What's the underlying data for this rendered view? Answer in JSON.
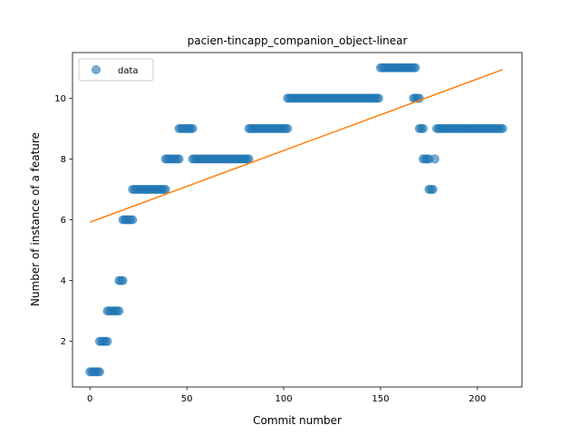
{
  "chart_data": {
    "type": "scatter",
    "title": "pacien-tincapp_companion_object-linear",
    "xlabel": "Commit number",
    "ylabel": "Number of instance of a feature",
    "xlim": [
      -9,
      223
    ],
    "ylim": [
      0.5,
      11.5
    ],
    "xticks": [
      0,
      50,
      100,
      150,
      200
    ],
    "yticks": [
      2,
      4,
      6,
      8,
      10
    ],
    "legend": {
      "position": "top-left",
      "entries": [
        "data"
      ]
    },
    "colors": {
      "points": "#1f77b4",
      "fit": "#ff7f0e"
    },
    "series": [
      {
        "name": "data",
        "kind": "scatter",
        "segments": [
          {
            "x_start": 0,
            "x_end": 5,
            "y": 1
          },
          {
            "x_start": 5,
            "x_end": 9,
            "y": 2
          },
          {
            "x_start": 9,
            "x_end": 15,
            "y": 3
          },
          {
            "x_start": 15,
            "x_end": 17,
            "y": 4
          },
          {
            "x_start": 17,
            "x_end": 22,
            "y": 6
          },
          {
            "x_start": 22,
            "x_end": 39,
            "y": 7
          },
          {
            "x_start": 39,
            "x_end": 46,
            "y": 8
          },
          {
            "x_start": 46,
            "x_end": 53,
            "y": 9
          },
          {
            "x_start": 53,
            "x_end": 82,
            "y": 8
          },
          {
            "x_start": 82,
            "x_end": 102,
            "y": 9
          },
          {
            "x_start": 102,
            "x_end": 149,
            "y": 10
          },
          {
            "x_start": 150,
            "x_end": 168,
            "y": 11
          },
          {
            "x_start": 167,
            "x_end": 170,
            "y": 10
          },
          {
            "x_start": 170,
            "x_end": 172,
            "y": 9
          },
          {
            "x_start": 172,
            "x_end": 175,
            "y": 8
          },
          {
            "x_start": 175,
            "x_end": 177,
            "y": 7
          },
          {
            "x_start": 178,
            "x_end": 178,
            "y": 8
          },
          {
            "x_start": 179,
            "x_end": 213,
            "y": 9
          }
        ]
      },
      {
        "name": "",
        "kind": "line",
        "x": [
          0,
          213
        ],
        "y": [
          5.92,
          10.94
        ]
      }
    ]
  }
}
